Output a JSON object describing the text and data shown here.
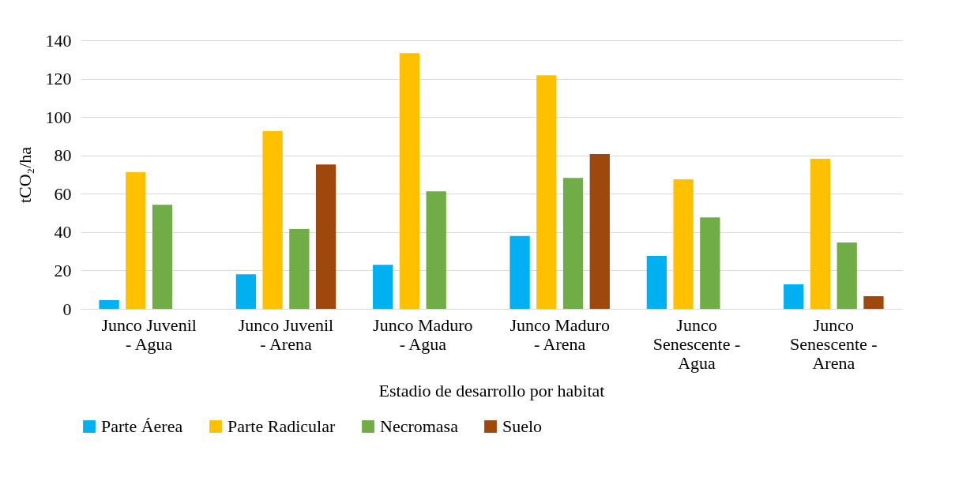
{
  "chart_data": {
    "type": "bar",
    "xlabel": "Estadio de desarrollo por habitat",
    "ylabel": "tCO₂/ha",
    "categories": [
      "Junco Juvenil - Agua",
      "Junco Juvenil - Arena",
      "Junco Maduro - Agua",
      "Junco Maduro - Arena",
      "Junco Senescente - Agua",
      "Junco Senescente - Arena"
    ],
    "series": [
      {
        "name": "Parte Áerea",
        "color": "#00b0f0",
        "values": [
          4.5,
          18,
          23,
          38,
          27.6,
          12.8
        ]
      },
      {
        "name": "Parte Radicular",
        "color": "#ffc000",
        "values": [
          71.2,
          92.6,
          133.3,
          121.8,
          67.5,
          78.2
        ]
      },
      {
        "name": "Necromasa",
        "color": "#70ad47",
        "values": [
          54.3,
          41.6,
          61.3,
          68.3,
          47.7,
          34.6
        ]
      },
      {
        "name": "Suelo",
        "color": "#9e480e",
        "values": [
          null,
          75.3,
          null,
          80.7,
          null,
          6.6
        ]
      }
    ],
    "ylim": [
      0,
      140
    ],
    "yticks": [
      0,
      20,
      40,
      60,
      80,
      100,
      120,
      140
    ],
    "grid": "y",
    "legend": "bottom"
  }
}
